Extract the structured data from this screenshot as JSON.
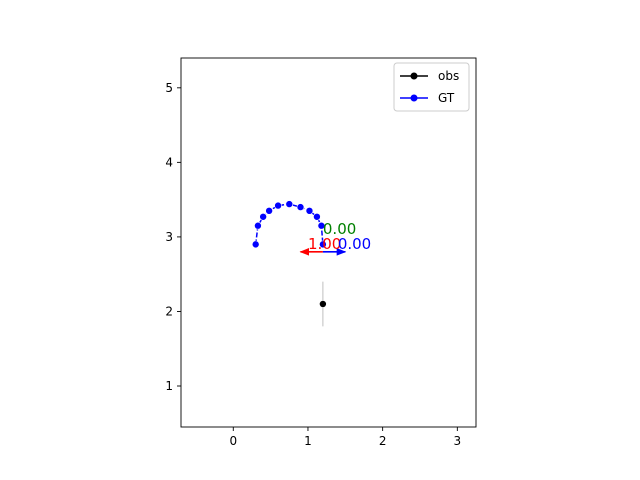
{
  "chart_data": {
    "type": "scatter",
    "title": "",
    "xlabel": "",
    "ylabel": "",
    "xlim": [
      -0.7,
      3.25
    ],
    "ylim": [
      0.45,
      5.4
    ],
    "xticks": [
      0,
      1,
      2,
      3
    ],
    "yticks": [
      1,
      2,
      3,
      4,
      5
    ],
    "grid": false,
    "legend": "top-right",
    "series": [
      {
        "name": "obs",
        "color": "#000000",
        "x": [
          1.2
        ],
        "y": [
          2.1
        ],
        "error_y": [
          0.3
        ]
      },
      {
        "name": "GT",
        "color": "#0000ff",
        "x": [
          0.3,
          0.33,
          0.4,
          0.48,
          0.6,
          0.75,
          0.9,
          1.02,
          1.12,
          1.18,
          1.2
        ],
        "y": [
          2.9,
          3.15,
          3.27,
          3.35,
          3.42,
          3.44,
          3.4,
          3.35,
          3.27,
          3.15,
          2.9
        ]
      }
    ],
    "arrows": [
      {
        "color": "#ff0000",
        "x": 1.2,
        "y": 2.8,
        "dx": -0.3,
        "dy": 0.0
      },
      {
        "color": "#0000ff",
        "x": 1.2,
        "y": 2.8,
        "dx": 0.3,
        "dy": 0.0
      }
    ],
    "annotations": [
      {
        "text": "0.00",
        "color": "#008000",
        "x": 1.2,
        "y": 3.0
      },
      {
        "text": "1.00",
        "color": "#ff0000",
        "x": 1.0,
        "y": 2.8
      },
      {
        "text": "0.00",
        "color": "#0000ff",
        "x": 1.4,
        "y": 2.8
      }
    ]
  }
}
